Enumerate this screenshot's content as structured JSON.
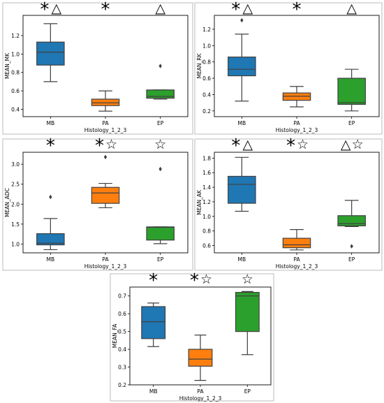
{
  "colors": {
    "MB": "#1f77b4",
    "PA": "#ff7f0e",
    "EP": "#2ca02c",
    "median": "#404040",
    "frame": "#000000"
  },
  "chart_data": [
    {
      "type": "box",
      "xlabel": "Histology_1_2_3",
      "ylabel": "MEAN_MK",
      "categories": [
        "MB",
        "PA",
        "EP"
      ],
      "ylim": [
        0.32,
        1.42
      ],
      "yticks": [
        "0.4",
        "0.6",
        "0.8",
        "1.0",
        "1.2"
      ],
      "ytick_values": [
        0.4,
        0.6,
        0.8,
        1.0,
        1.2
      ],
      "boxes": [
        {
          "name": "MB",
          "whislo": 0.7,
          "q1": 0.88,
          "med": 1.02,
          "q3": 1.13,
          "whishi": 1.33,
          "fliers": []
        },
        {
          "name": "PA",
          "whislo": 0.38,
          "q1": 0.44,
          "med": 0.47,
          "q3": 0.51,
          "whishi": 0.6,
          "fliers": []
        },
        {
          "name": "EP",
          "whislo": 0.51,
          "q1": 0.52,
          "med": 0.54,
          "q3": 0.61,
          "whishi": 0.61,
          "fliers": [
            0.87
          ]
        }
      ],
      "markers": [
        "*△",
        "*",
        "△"
      ]
    },
    {
      "type": "box",
      "xlabel": "Histology_1_2_3",
      "ylabel": "MEAN_RK",
      "categories": [
        "MB",
        "PA",
        "EP"
      ],
      "ylim": [
        0.13,
        1.37
      ],
      "yticks": [
        "0.2",
        "0.4",
        "0.6",
        "0.8",
        "1.0",
        "1.2"
      ],
      "ytick_values": [
        0.2,
        0.4,
        0.6,
        0.8,
        1.0,
        1.2
      ],
      "boxes": [
        {
          "name": "MB",
          "whislo": 0.32,
          "q1": 0.63,
          "med": 0.71,
          "q3": 0.86,
          "whishi": 1.14,
          "fliers": [
            1.31
          ]
        },
        {
          "name": "PA",
          "whislo": 0.25,
          "q1": 0.33,
          "med": 0.38,
          "q3": 0.42,
          "whishi": 0.5,
          "fliers": []
        },
        {
          "name": "EP",
          "whislo": 0.2,
          "q1": 0.28,
          "med": 0.3,
          "q3": 0.6,
          "whishi": 0.71,
          "fliers": []
        }
      ],
      "markers": [
        "*△",
        "*",
        "△"
      ]
    },
    {
      "type": "box",
      "xlabel": "Histology_1_2_3",
      "ylabel": "MEAN_ADC",
      "categories": [
        "MB",
        "PA",
        "EP"
      ],
      "ylim": [
        0.78,
        3.3
      ],
      "yticks": [
        "1.0",
        "1.5",
        "2.0",
        "2.5",
        "3.0"
      ],
      "ytick_values": [
        1.0,
        1.5,
        2.0,
        2.5,
        3.0
      ],
      "boxes": [
        {
          "name": "MB",
          "whislo": 0.86,
          "q1": 0.98,
          "med": 1.02,
          "q3": 1.26,
          "whishi": 1.64,
          "fliers": [
            2.18
          ]
        },
        {
          "name": "PA",
          "whislo": 1.91,
          "q1": 2.02,
          "med": 2.28,
          "q3": 2.42,
          "whishi": 2.52,
          "fliers": [
            3.18
          ]
        },
        {
          "name": "EP",
          "whislo": 1.01,
          "q1": 1.1,
          "med": 1.42,
          "q3": 1.43,
          "whishi": 1.43,
          "fliers": [
            2.88
          ]
        }
      ],
      "markers": [
        "*",
        "*☆",
        "☆"
      ]
    },
    {
      "type": "box",
      "xlabel": "Histology_1_2_3",
      "ylabel": "MEAN_AK",
      "categories": [
        "MB",
        "PA",
        "EP"
      ],
      "ylim": [
        0.5,
        1.88
      ],
      "yticks": [
        "0.6",
        "0.8",
        "1.0",
        "1.2",
        "1.4",
        "1.6",
        "1.8"
      ],
      "ytick_values": [
        0.6,
        0.8,
        1.0,
        1.2,
        1.4,
        1.6,
        1.8
      ],
      "boxes": [
        {
          "name": "MB",
          "whislo": 1.07,
          "q1": 1.18,
          "med": 1.44,
          "q3": 1.55,
          "whishi": 1.81,
          "fliers": []
        },
        {
          "name": "PA",
          "whislo": 0.54,
          "q1": 0.57,
          "med": 0.61,
          "q3": 0.7,
          "whishi": 0.82,
          "fliers": []
        },
        {
          "name": "EP",
          "whislo": 0.86,
          "q1": 0.87,
          "med": 0.9,
          "q3": 1.01,
          "whishi": 1.22,
          "fliers": [
            0.59
          ]
        }
      ],
      "markers": [
        "*△",
        "*☆",
        "△☆"
      ]
    },
    {
      "type": "box",
      "xlabel": "Histology_1_2_3",
      "ylabel": "MEAN_FA",
      "categories": [
        "MB",
        "PA",
        "EP"
      ],
      "ylim": [
        0.2,
        0.75
      ],
      "yticks": [
        "0.2",
        "0.3",
        "0.4",
        "0.5",
        "0.6",
        "0.7"
      ],
      "ytick_values": [
        0.2,
        0.3,
        0.4,
        0.5,
        0.6,
        0.7
      ],
      "boxes": [
        {
          "name": "MB",
          "whislo": 0.415,
          "q1": 0.46,
          "med": 0.555,
          "q3": 0.64,
          "whishi": 0.66,
          "fliers": []
        },
        {
          "name": "PA",
          "whislo": 0.225,
          "q1": 0.305,
          "med": 0.345,
          "q3": 0.4,
          "whishi": 0.48,
          "fliers": []
        },
        {
          "name": "EP",
          "whislo": 0.37,
          "q1": 0.5,
          "med": 0.7,
          "q3": 0.72,
          "whishi": 0.725,
          "fliers": []
        }
      ],
      "markers": [
        "*",
        "*☆",
        "☆"
      ]
    }
  ]
}
